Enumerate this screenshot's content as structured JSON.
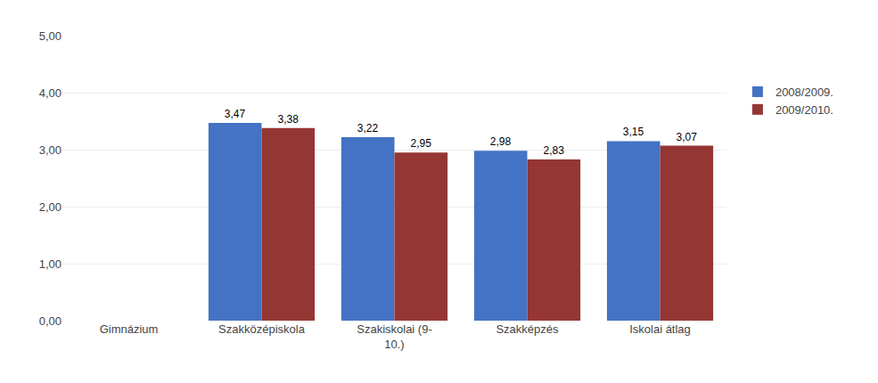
{
  "chart_data": {
    "type": "bar",
    "categories": [
      "Gimnázium",
      "Szakközépiskola",
      "Szakiskolai (9-\n10.)",
      "Szakképzés",
      "Iskolai átlag"
    ],
    "series": [
      {
        "name": "2008/2009.",
        "color": "#4472C4",
        "values": [
          0,
          3.47,
          3.22,
          2.98,
          3.15
        ],
        "value_labels": [
          null,
          "3,47",
          "3,22",
          "2,98",
          "3,15"
        ]
      },
      {
        "name": "2009/2010.",
        "color": "#943634",
        "values": [
          0,
          3.38,
          2.95,
          2.83,
          3.07
        ],
        "value_labels": [
          null,
          "3,38",
          "2,95",
          "2,83",
          "3,07"
        ]
      }
    ],
    "ylim": [
      0,
      5.0
    ],
    "yticks": [
      {
        "value": 0.0,
        "label": "0,00"
      },
      {
        "value": 1.0,
        "label": "1,00"
      },
      {
        "value": 2.0,
        "label": "2,00"
      },
      {
        "value": 3.0,
        "label": "3,00"
      },
      {
        "value": 4.0,
        "label": "4,00"
      },
      {
        "value": 5.0,
        "label": "5,00"
      }
    ],
    "grid": true,
    "legend": "right",
    "data_labels": true
  }
}
